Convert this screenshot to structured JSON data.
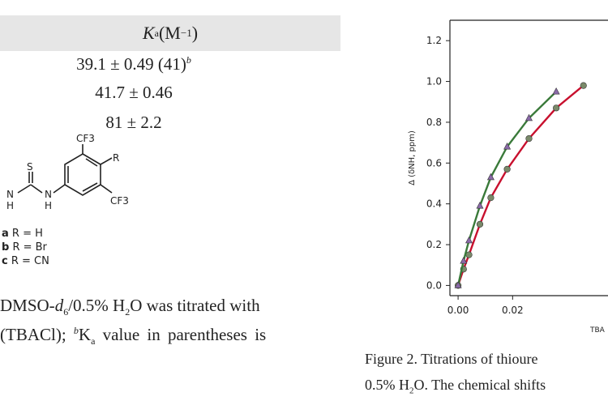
{
  "table": {
    "header_symbol": "K",
    "header_sub": "a",
    "header_unit": " (M",
    "header_exp": "−1",
    "header_close": ")",
    "rows": [
      {
        "value": "39.1 ± 0.49 (41)",
        "note": "b"
      },
      {
        "value": "41.7 ± 0.46",
        "note": ""
      },
      {
        "value": "81 ± 2.2",
        "note": ""
      }
    ]
  },
  "structure": {
    "labels": {
      "cf3_top": "CF3",
      "r": "R",
      "cf3_bottom": "CF3",
      "s": "S",
      "nh1": "N",
      "nh1_h": "H",
      "nh2": "N",
      "nh2_h": "H"
    },
    "substituents": [
      {
        "key": "a",
        "text": " R = H"
      },
      {
        "key": "b",
        "text": " R = Br"
      },
      {
        "key": "c",
        "text": " R = CN"
      }
    ]
  },
  "footnote": {
    "line1_a": "DMSO-",
    "line1_b": "d",
    "line1_c": "6",
    "line1_d": "/0.5% H",
    "line1_e": "2",
    "line1_f": "O was titrated with",
    "line2_a": "(TBACl); ",
    "line2_b": "b",
    "line2_c": "K",
    "line2_d": "a",
    "line2_e": " value in parentheses is"
  },
  "chart_data": {
    "type": "scatter",
    "ylabel": "Δ (δNH, ppm)",
    "xlabel_partial": "TBA",
    "xlim": [
      -0.003,
      0.055
    ],
    "ylim": [
      -0.05,
      1.3
    ],
    "yticks": [
      "0.0",
      "0.2",
      "0.4",
      "0.6",
      "0.8",
      "1.0",
      "1.2"
    ],
    "xticks": [
      "0.00",
      "0.02"
    ],
    "series": [
      {
        "color": "#c8102e",
        "marker": "circle",
        "points": [
          [
            0.0,
            0.0
          ],
          [
            0.002,
            0.08
          ],
          [
            0.004,
            0.15
          ],
          [
            0.008,
            0.3
          ],
          [
            0.012,
            0.43
          ],
          [
            0.018,
            0.57
          ],
          [
            0.026,
            0.72
          ],
          [
            0.036,
            0.87
          ],
          [
            0.046,
            0.98
          ]
        ]
      },
      {
        "color": "#3a7a3a",
        "marker": "triangle",
        "points": [
          [
            0.0,
            0.0
          ],
          [
            0.002,
            0.12
          ],
          [
            0.004,
            0.22
          ],
          [
            0.008,
            0.39
          ],
          [
            0.012,
            0.53
          ],
          [
            0.018,
            0.68
          ],
          [
            0.026,
            0.82
          ],
          [
            0.036,
            0.95
          ]
        ]
      }
    ]
  },
  "caption": {
    "line1": "Figure 2. Titrations of thioure",
    "line2_a": "0.5% H",
    "line2_b": "2",
    "line2_c": "O. The chemical shifts"
  }
}
